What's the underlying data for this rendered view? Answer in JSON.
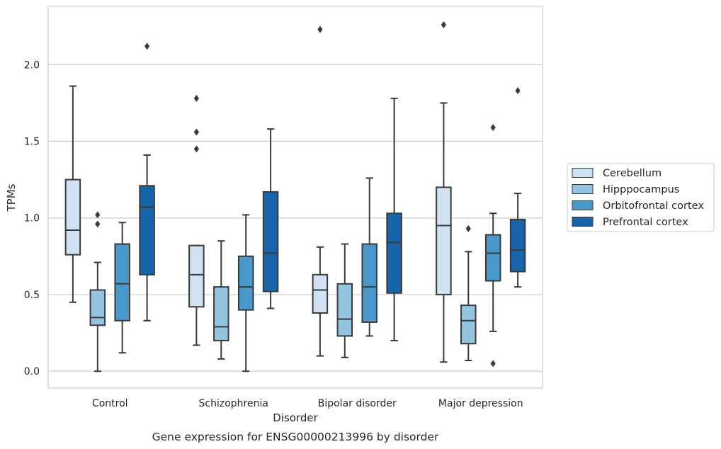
{
  "chart_data": {
    "type": "box",
    "title": "",
    "caption": "Gene expression for ENSG00000213996 by disorder",
    "xlabel": "Disorder",
    "ylabel": "TPMs",
    "ylim": [
      -0.11,
      2.38
    ],
    "yticks": [
      0.0,
      0.5,
      1.0,
      1.5,
      2.0
    ],
    "ytick_labels": [
      "0.0",
      "0.5",
      "1.0",
      "1.5",
      "2.0"
    ],
    "grid": "horizontal",
    "legend_position": "right",
    "categories": [
      "Control",
      "Schizophrenia",
      "Bipolar disorder",
      "Major depression"
    ],
    "series": [
      {
        "name": "Cerebellum",
        "color": "#d0e1f2",
        "boxes": [
          {
            "whisker_low": 0.45,
            "q1": 0.76,
            "median": 0.92,
            "q3": 1.25,
            "whisker_high": 1.86,
            "outliers": []
          },
          {
            "whisker_low": 0.17,
            "q1": 0.42,
            "median": 0.63,
            "q3": 0.82,
            "whisker_high": 0.82,
            "outliers": [
              1.45,
              1.56,
              1.78
            ]
          },
          {
            "whisker_low": 0.1,
            "q1": 0.38,
            "median": 0.53,
            "q3": 0.63,
            "whisker_high": 0.81,
            "outliers": [
              2.23
            ]
          },
          {
            "whisker_low": 0.06,
            "q1": 0.5,
            "median": 0.95,
            "q3": 1.2,
            "whisker_high": 1.75,
            "outliers": [
              2.26
            ]
          }
        ]
      },
      {
        "name": "Hipppocampus",
        "color": "#94c4df",
        "boxes": [
          {
            "whisker_low": 0.0,
            "q1": 0.3,
            "median": 0.35,
            "q3": 0.53,
            "whisker_high": 0.71,
            "outliers": [
              0.96,
              1.02
            ]
          },
          {
            "whisker_low": 0.08,
            "q1": 0.2,
            "median": 0.29,
            "q3": 0.55,
            "whisker_high": 0.85,
            "outliers": []
          },
          {
            "whisker_low": 0.09,
            "q1": 0.23,
            "median": 0.34,
            "q3": 0.57,
            "whisker_high": 0.83,
            "outliers": []
          },
          {
            "whisker_low": 0.07,
            "q1": 0.18,
            "median": 0.33,
            "q3": 0.43,
            "whisker_high": 0.78,
            "outliers": [
              0.93
            ]
          }
        ]
      },
      {
        "name": "Orbitofrontal cortex",
        "color": "#4a98c9",
        "boxes": [
          {
            "whisker_low": 0.12,
            "q1": 0.33,
            "median": 0.57,
            "q3": 0.83,
            "whisker_high": 0.97,
            "outliers": []
          },
          {
            "whisker_low": 0.0,
            "q1": 0.4,
            "median": 0.55,
            "q3": 0.75,
            "whisker_high": 1.02,
            "outliers": []
          },
          {
            "whisker_low": 0.23,
            "q1": 0.32,
            "median": 0.55,
            "q3": 0.83,
            "whisker_high": 1.26,
            "outliers": []
          },
          {
            "whisker_low": 0.26,
            "q1": 0.59,
            "median": 0.77,
            "q3": 0.89,
            "whisker_high": 1.03,
            "outliers": [
              0.05,
              1.59
            ]
          }
        ]
      },
      {
        "name": "Prefrontal cortex",
        "color": "#1764ab",
        "boxes": [
          {
            "whisker_low": 0.33,
            "q1": 0.63,
            "median": 1.07,
            "q3": 1.21,
            "whisker_high": 1.41,
            "outliers": [
              2.12
            ]
          },
          {
            "whisker_low": 0.41,
            "q1": 0.52,
            "median": 0.77,
            "q3": 1.17,
            "whisker_high": 1.58,
            "outliers": []
          },
          {
            "whisker_low": 0.2,
            "q1": 0.51,
            "median": 0.84,
            "q3": 1.03,
            "whisker_high": 1.78,
            "outliers": []
          },
          {
            "whisker_low": 0.55,
            "q1": 0.65,
            "median": 0.79,
            "q3": 0.99,
            "whisker_high": 1.16,
            "outliers": [
              1.83
            ]
          }
        ]
      }
    ]
  }
}
